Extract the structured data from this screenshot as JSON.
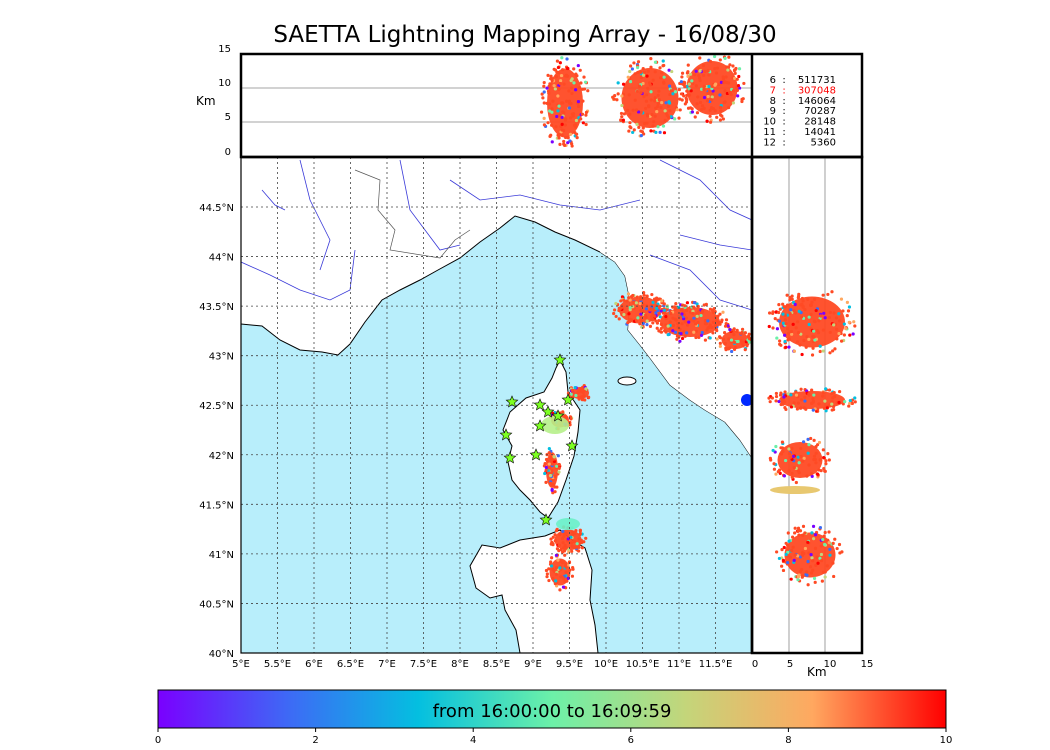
{
  "title": "SAETTA Lightning Mapping Array - 16/08/30",
  "altitude_panel": {
    "ylabel": "Km",
    "yticks": [
      "15",
      "10",
      "5",
      "0"
    ]
  },
  "side_panel": {
    "xlabel": "Km",
    "xticks": [
      "0",
      "5",
      "10",
      "15"
    ]
  },
  "map": {
    "lon_ticks": [
      "5°E",
      "5.5°E",
      "6°E",
      "6.5°E",
      "7°E",
      "7.5°E",
      "8°E",
      "8.5°E",
      "9°E",
      "9.5°E",
      "10°E",
      "10.5°E",
      "11°E",
      "11.5°E"
    ],
    "lat_ticks": [
      "44.5°N",
      "44°N",
      "43.5°N",
      "43°N",
      "42.5°N",
      "42°N",
      "41.5°N",
      "41°N",
      "40.5°N",
      "40°N"
    ]
  },
  "station_counts": [
    {
      "station": "6",
      "count": "511731",
      "color": "#000000"
    },
    {
      "station": "7",
      "count": "307048",
      "color": "#ff0000"
    },
    {
      "station": "8",
      "count": "146064",
      "color": "#000000"
    },
    {
      "station": "9",
      "count": "70287",
      "color": "#000000"
    },
    {
      "station": "10",
      "count": "28148",
      "color": "#000000"
    },
    {
      "station": "11",
      "count": "14041",
      "color": "#000000"
    },
    {
      "station": "12",
      "count": "5360",
      "color": "#000000"
    }
  ],
  "colorbar": {
    "label": "from 16:00:00 to 16:09:59",
    "ticks": [
      "0",
      "2",
      "4",
      "6",
      "8",
      "10"
    ],
    "colors": [
      "#7a00ff",
      "#3c6cf5",
      "#04bfe0",
      "#6cf0a8",
      "#c4d57a",
      "#ffa860",
      "#ff0000"
    ]
  },
  "colors": {
    "sea": "#b8eefb",
    "storm": "#ff4a24",
    "station_marker": "#7dff22"
  }
}
